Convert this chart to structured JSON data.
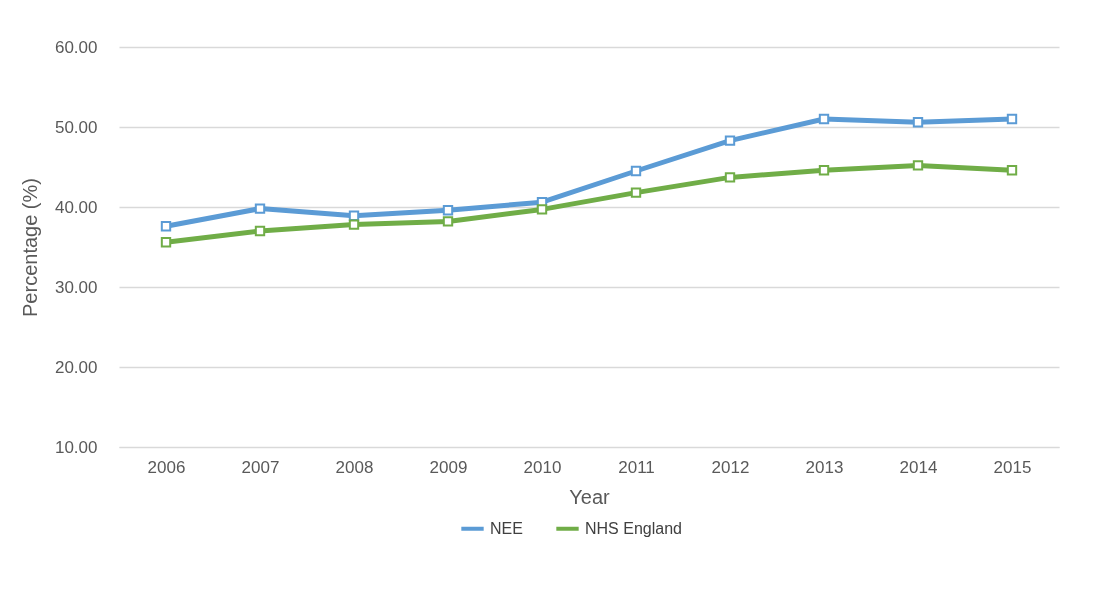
{
  "chart_data": {
    "type": "line",
    "xlabel": "Year",
    "ylabel": "Percentage (%)",
    "categories": [
      "2006",
      "2007",
      "2008",
      "2009",
      "2010",
      "2011",
      "2012",
      "2013",
      "2014",
      "2015"
    ],
    "series": [
      {
        "name": "NEE",
        "color": "#5b9bd5",
        "values": [
          37.6,
          39.8,
          38.9,
          39.6,
          40.6,
          44.5,
          48.3,
          51.0,
          50.6,
          51.0
        ]
      },
      {
        "name": "NHS England",
        "color": "#70ad47",
        "values": [
          35.6,
          37.0,
          37.8,
          38.2,
          39.7,
          41.8,
          43.7,
          44.6,
          45.2,
          44.6
        ]
      }
    ],
    "ylim": [
      10,
      60
    ],
    "yticks": [
      {
        "value": 10,
        "label": "10.00"
      },
      {
        "value": 20,
        "label": "20.00"
      },
      {
        "value": 30,
        "label": "30.00"
      },
      {
        "value": 40,
        "label": "40.00"
      },
      {
        "value": 50,
        "label": "50.00"
      },
      {
        "value": 60,
        "label": "60.00"
      }
    ],
    "grid": "y",
    "legend": "bottom",
    "marker": "square",
    "line_style": "solid"
  }
}
